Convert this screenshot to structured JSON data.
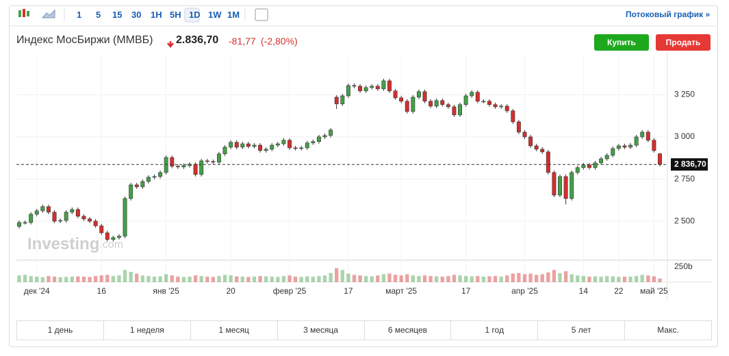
{
  "toolbar": {
    "intervals": [
      "1",
      "5",
      "15",
      "30",
      "1H",
      "5H",
      "1D",
      "1W",
      "1M"
    ],
    "stream_link": "Потоковый график »"
  },
  "header": {
    "title": "Индекс МосБиржи (ММВБ)",
    "price": "2.836,70",
    "change": "-81,77",
    "change_pct": "(-2,80%)"
  },
  "buttons": {
    "buy": "Купить",
    "sell": "Продать"
  },
  "watermark": {
    "brand": "Investing",
    "suffix": ".com"
  },
  "ranges": [
    "1 день",
    "1 неделя",
    "1 месяц",
    "3 месяца",
    "6 месяцев",
    "1 год",
    "5 лет",
    "Макс."
  ],
  "chart_data": {
    "type": "candlestick",
    "categories": [
      null,
      null,
      null,
      "дек '24",
      null,
      null,
      null,
      null,
      null,
      null,
      null,
      null,
      null,
      null,
      "16",
      null,
      null,
      null,
      null,
      null,
      null,
      null,
      null,
      null,
      null,
      "янв '25",
      null,
      null,
      null,
      null,
      null,
      null,
      null,
      null,
      null,
      null,
      "20",
      null,
      null,
      null,
      null,
      null,
      null,
      null,
      null,
      null,
      "февр '25",
      null,
      null,
      null,
      null,
      null,
      null,
      null,
      null,
      null,
      "17",
      null,
      null,
      null,
      null,
      null,
      null,
      null,
      null,
      "март '25",
      null,
      null,
      null,
      null,
      null,
      null,
      null,
      null,
      null,
      null,
      "17",
      null,
      null,
      null,
      null,
      null,
      null,
      null,
      null,
      null,
      "апр '25",
      null,
      null,
      null,
      null,
      null,
      null,
      null,
      null,
      null,
      "14",
      null,
      null,
      null,
      null,
      null,
      "22",
      null,
      null,
      null,
      null,
      null,
      "май '25",
      null
    ],
    "open": [
      2470,
      2493,
      2493,
      2542,
      2562,
      2587,
      2554,
      2501,
      2505,
      2554,
      2570,
      2530,
      2514,
      2501,
      2473,
      2432,
      2392,
      2404,
      2412,
      2635,
      2716,
      2704,
      2736,
      2761,
      2765,
      2789,
      2878,
      2826,
      2822,
      2830,
      2838,
      2777,
      2858,
      2854,
      2850,
      2899,
      2939,
      2968,
      2939,
      2959,
      2943,
      2951,
      2919,
      2927,
      2951,
      2959,
      2980,
      2935,
      2931,
      2935,
      2964,
      2972,
      3000,
      3008,
      3235,
      3195,
      3243,
      3304,
      3300,
      3272,
      3292,
      3300,
      3284,
      3332,
      3272,
      3231,
      3211,
      3150,
      3235,
      3268,
      3211,
      3182,
      3215,
      3191,
      3178,
      3130,
      3191,
      3243,
      3264,
      3211,
      3211,
      3191,
      3178,
      3182,
      3154,
      3089,
      3028,
      3000,
      2947,
      2927,
      2911,
      2789,
      2655,
      2765,
      2635,
      2789,
      2818,
      2834,
      2818,
      2846,
      2870,
      2891,
      2931,
      2947,
      2939,
      2951,
      3000,
      3028,
      2980,
      2900
    ],
    "high": [
      2505,
      2505,
      2554,
      2574,
      2599,
      2599,
      2566,
      2517,
      2566,
      2582,
      2582,
      2542,
      2526,
      2513,
      2485,
      2444,
      2416,
      2424,
      2647,
      2728,
      2728,
      2748,
      2773,
      2777,
      2801,
      2890,
      2890,
      2838,
      2842,
      2850,
      2850,
      2870,
      2870,
      2866,
      2911,
      2951,
      2980,
      2980,
      2971,
      2971,
      2963,
      2963,
      2939,
      2963,
      2971,
      2992,
      2992,
      2947,
      2947,
      2976,
      2984,
      3012,
      3020,
      3053,
      3247,
      3255,
      3316,
      3316,
      3312,
      3304,
      3312,
      3312,
      3344,
      3344,
      3284,
      3243,
      3223,
      3247,
      3280,
      3280,
      3223,
      3227,
      3227,
      3203,
      3190,
      3203,
      3255,
      3276,
      3276,
      3223,
      3223,
      3203,
      3194,
      3194,
      3166,
      3101,
      3040,
      3012,
      2959,
      2939,
      2923,
      2801,
      2777,
      2777,
      2801,
      2830,
      2846,
      2846,
      2858,
      2882,
      2903,
      2943,
      2959,
      2959,
      2963,
      3012,
      3040,
      3040,
      2992,
      2905
    ],
    "low": [
      2458,
      2481,
      2481,
      2530,
      2550,
      2542,
      2489,
      2489,
      2493,
      2542,
      2518,
      2502,
      2489,
      2461,
      2420,
      2380,
      2380,
      2392,
      2400,
      2623,
      2692,
      2692,
      2724,
      2749,
      2753,
      2777,
      2814,
      2810,
      2810,
      2818,
      2765,
      2765,
      2842,
      2838,
      2838,
      2887,
      2927,
      2927,
      2927,
      2931,
      2931,
      2907,
      2907,
      2915,
      2939,
      2947,
      2923,
      2919,
      2919,
      2923,
      2952,
      2960,
      2988,
      2996,
      3165,
      3183,
      3231,
      3288,
      3260,
      3260,
      3280,
      3272,
      3272,
      3260,
      3219,
      3199,
      3138,
      3138,
      3223,
      3199,
      3170,
      3170,
      3179,
      3166,
      3118,
      3118,
      3179,
      3231,
      3199,
      3199,
      3179,
      3166,
      3166,
      3142,
      3077,
      3016,
      2988,
      2935,
      2915,
      2899,
      2777,
      2643,
      2643,
      2600,
      2623,
      2777,
      2806,
      2806,
      2806,
      2834,
      2858,
      2879,
      2919,
      2927,
      2927,
      2939,
      2988,
      2968,
      2907,
      2825
    ],
    "close": [
      2493,
      2493,
      2542,
      2562,
      2587,
      2554,
      2501,
      2505,
      2554,
      2570,
      2530,
      2514,
      2501,
      2473,
      2432,
      2392,
      2404,
      2412,
      2635,
      2716,
      2704,
      2736,
      2761,
      2765,
      2789,
      2878,
      2826,
      2822,
      2830,
      2838,
      2777,
      2858,
      2854,
      2850,
      2899,
      2939,
      2968,
      2939,
      2959,
      2943,
      2951,
      2919,
      2927,
      2951,
      2959,
      2980,
      2935,
      2931,
      2935,
      2964,
      2972,
      3000,
      3008,
      3041,
      3195,
      3243,
      3304,
      3300,
      3272,
      3292,
      3300,
      3284,
      3332,
      3272,
      3231,
      3211,
      3150,
      3235,
      3268,
      3211,
      3182,
      3215,
      3191,
      3178,
      3130,
      3191,
      3243,
      3264,
      3211,
      3211,
      3191,
      3178,
      3182,
      3154,
      3089,
      3028,
      3000,
      2947,
      2927,
      2911,
      2789,
      2655,
      2765,
      2635,
      2789,
      2818,
      2834,
      2818,
      2846,
      2870,
      2891,
      2931,
      2947,
      2939,
      2951,
      3000,
      3028,
      2980,
      2918.47,
      2836.7
    ],
    "volume": [
      110,
      120,
      100,
      90,
      80,
      100,
      90,
      80,
      85,
      90,
      95,
      90,
      85,
      100,
      110,
      120,
      100,
      110,
      200,
      170,
      140,
      110,
      100,
      90,
      95,
      130,
      110,
      90,
      85,
      90,
      110,
      100,
      90,
      85,
      100,
      120,
      110,
      95,
      90,
      85,
      90,
      100,
      95,
      90,
      85,
      100,
      110,
      90,
      85,
      95,
      90,
      100,
      110,
      150,
      230,
      200,
      140,
      120,
      110,
      100,
      95,
      110,
      130,
      140,
      120,
      110,
      130,
      110,
      100,
      110,
      100,
      95,
      90,
      100,
      120,
      110,
      100,
      95,
      100,
      90,
      95,
      100,
      90,
      110,
      140,
      150,
      130,
      140,
      120,
      130,
      160,
      200,
      150,
      180,
      130,
      110,
      100,
      90,
      95,
      90,
      100,
      95,
      85,
      90,
      90,
      100,
      120,
      110,
      95,
      60
    ],
    "ylim": [
      2270,
      3486
    ],
    "yticks": [
      {
        "value": 2500,
        "label": "2 500"
      },
      {
        "value": 2750,
        "label": "2 750"
      },
      {
        "value": 3000,
        "label": "3 000"
      },
      {
        "value": 3250,
        "label": "3 250"
      }
    ],
    "volume_ylim": [
      0,
      340
    ],
    "volume_yticks": [
      {
        "value": 250,
        "label": "250b"
      }
    ],
    "last_label": "2 836,70",
    "grid": true,
    "up_color": "#43a047",
    "down_color": "#d32f2f"
  }
}
